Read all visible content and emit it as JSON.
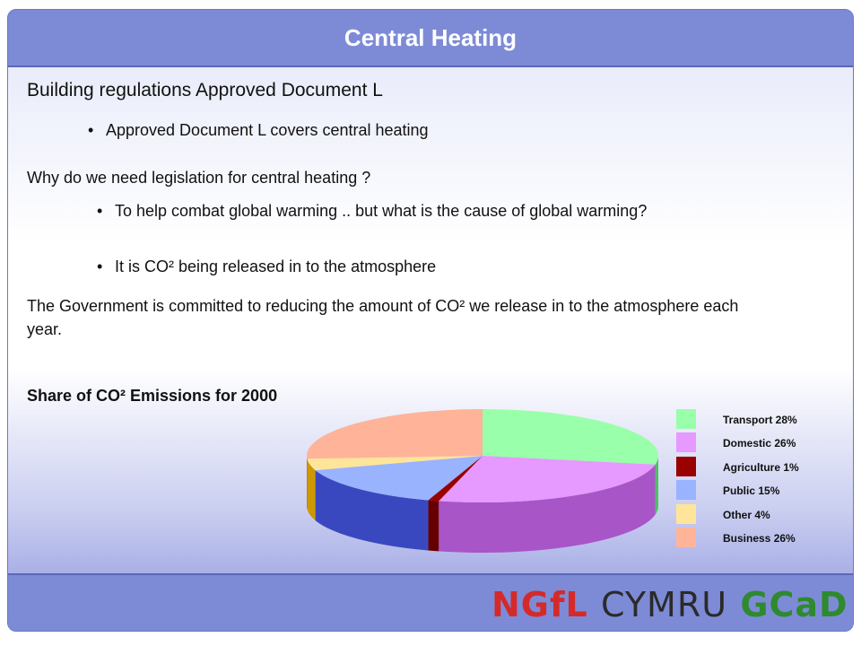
{
  "slide": {
    "title": "Central Heating",
    "heading": "Building regulations Approved Document L",
    "bullet1": "Approved Document L covers central heating",
    "question": "Why do we need legislation for central heating ?",
    "bullet2": "To help combat global warming .. but what is the cause of global warming?",
    "bullet3": "It is CO² being released in to the atmosphere",
    "paragraph": "The Government is committed to reducing the amount of CO² we release in to the atmosphere each year.",
    "chart_heading": "Share of CO² Emissions for 2000"
  },
  "chart_data": {
    "type": "pie",
    "title": "Share of CO² Emissions for 2000",
    "legend_position": "right",
    "slices": [
      {
        "label": "Transport 28%",
        "value": 28,
        "color": "#99ffaa",
        "side": "#4fbf66"
      },
      {
        "label": "Domestic 26%",
        "value": 26,
        "color": "#e699ff",
        "side": "#a855c8"
      },
      {
        "label": "Agriculture 1%",
        "value": 1,
        "color": "#990000",
        "side": "#660000"
      },
      {
        "label": "Public 15%",
        "value": 15,
        "color": "#99b3ff",
        "side": "#3a48c0"
      },
      {
        "label": "Other 4%",
        "value": 4,
        "color": "#ffe599",
        "side": "#cc9900"
      },
      {
        "label": "Business 26%",
        "value": 26,
        "color": "#ffb399",
        "side": "#b84040"
      }
    ]
  },
  "footer": {
    "logo_part1": "NGfL",
    "logo_part2": "CYMRU",
    "logo_part3": "GCaD"
  }
}
